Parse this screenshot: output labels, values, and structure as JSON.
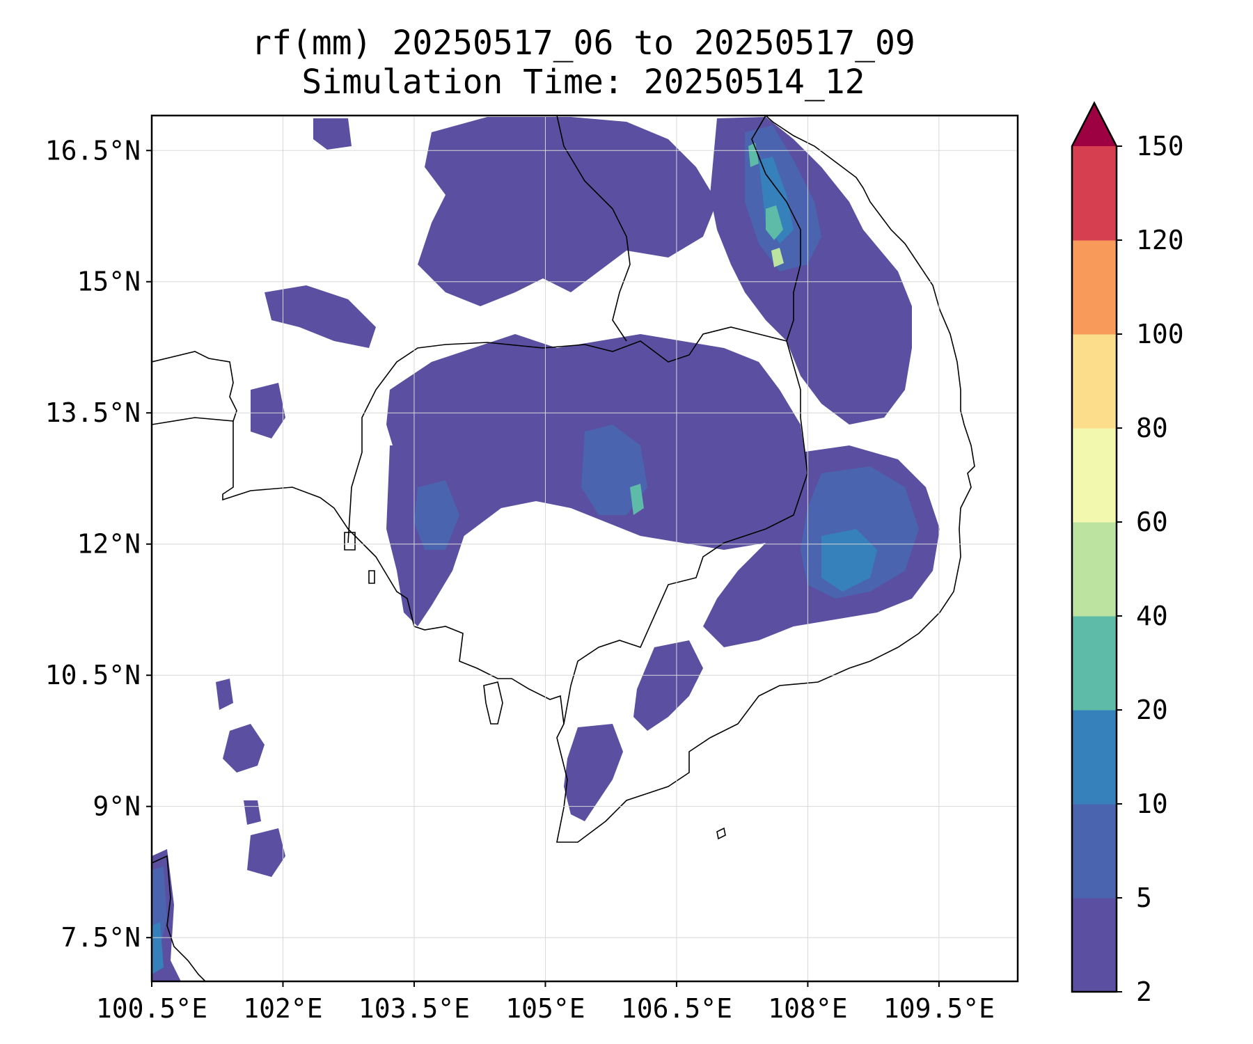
{
  "title": {
    "line1": "rf(mm) 20250517_06 to 20250517_09",
    "line2": "Simulation Time: 20250514_12"
  },
  "map": {
    "lon_range": [
      100.5,
      110.4
    ],
    "lat_range": [
      7.0,
      16.9
    ],
    "lon_ticks": [
      {
        "value": 100.5,
        "label": "100.5°E"
      },
      {
        "value": 102.0,
        "label": "102°E"
      },
      {
        "value": 103.5,
        "label": "103.5°E"
      },
      {
        "value": 105.0,
        "label": "105°E"
      },
      {
        "value": 106.5,
        "label": "106.5°E"
      },
      {
        "value": 108.0,
        "label": "108°E"
      },
      {
        "value": 109.5,
        "label": "109.5°E"
      }
    ],
    "lat_ticks": [
      {
        "value": 16.5,
        "label": "16.5°N"
      },
      {
        "value": 15.0,
        "label": "15°N"
      },
      {
        "value": 13.5,
        "label": "13.5°N"
      },
      {
        "value": 12.0,
        "label": "12°N"
      },
      {
        "value": 10.5,
        "label": "10.5°N"
      },
      {
        "value": 9.0,
        "label": "9°N"
      },
      {
        "value": 7.5,
        "label": "7.5°N"
      }
    ],
    "grid": true
  },
  "colorbar": {
    "levels": [
      "2",
      "5",
      "10",
      "20",
      "40",
      "60",
      "80",
      "100",
      "120",
      "150"
    ],
    "colors": [
      "#5a4fa0",
      "#4a64b0",
      "#3680bb",
      "#5dbba8",
      "#bde3a1",
      "#f2f9ae",
      "#fbdd8b",
      "#f89a5a",
      "#d53f4f"
    ],
    "extend_color": "#9e0142",
    "extend": "max"
  },
  "colors": {
    "rain_light": "#5a4fa0",
    "rain_moderate": "#4a64b0",
    "rain_heavy": "#3680bb",
    "rain_veryheavy": "#5dbba8",
    "rain_extreme": "#bde3a1",
    "coastline": "#000000"
  }
}
